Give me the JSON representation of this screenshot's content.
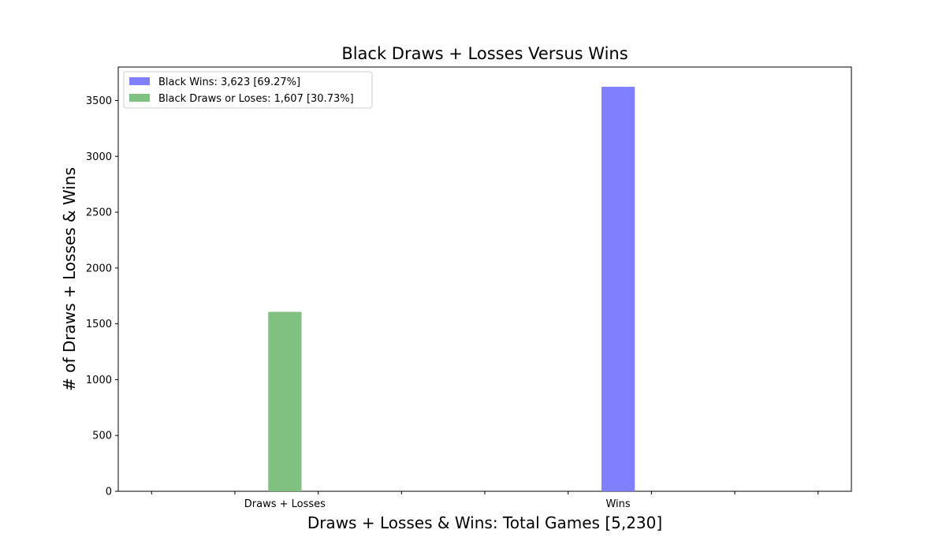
{
  "chart_data": {
    "type": "bar",
    "title": "Black Draws + Losses Versus Wins",
    "xlabel": "Draws + Losses & Wins: Total Games [5,230]",
    "ylabel": "# of Draws + Losses & Wins",
    "categories": [
      "Draws + Losses",
      "Wins"
    ],
    "series": [
      {
        "name": "Black Wins: 3,623 [69.27%]",
        "color": "#8080ff",
        "category": "Wins",
        "value": 3623
      },
      {
        "name": "Black Draws or Loses: 1,607 [30.73%]",
        "color": "#80c080",
        "category": "Draws + Losses",
        "value": 1607
      }
    ],
    "ylim": [
      0,
      3800
    ],
    "yticks": [
      0,
      500,
      1000,
      1500,
      2000,
      2500,
      3000,
      3500
    ],
    "grid": false,
    "legend": "top-left"
  }
}
